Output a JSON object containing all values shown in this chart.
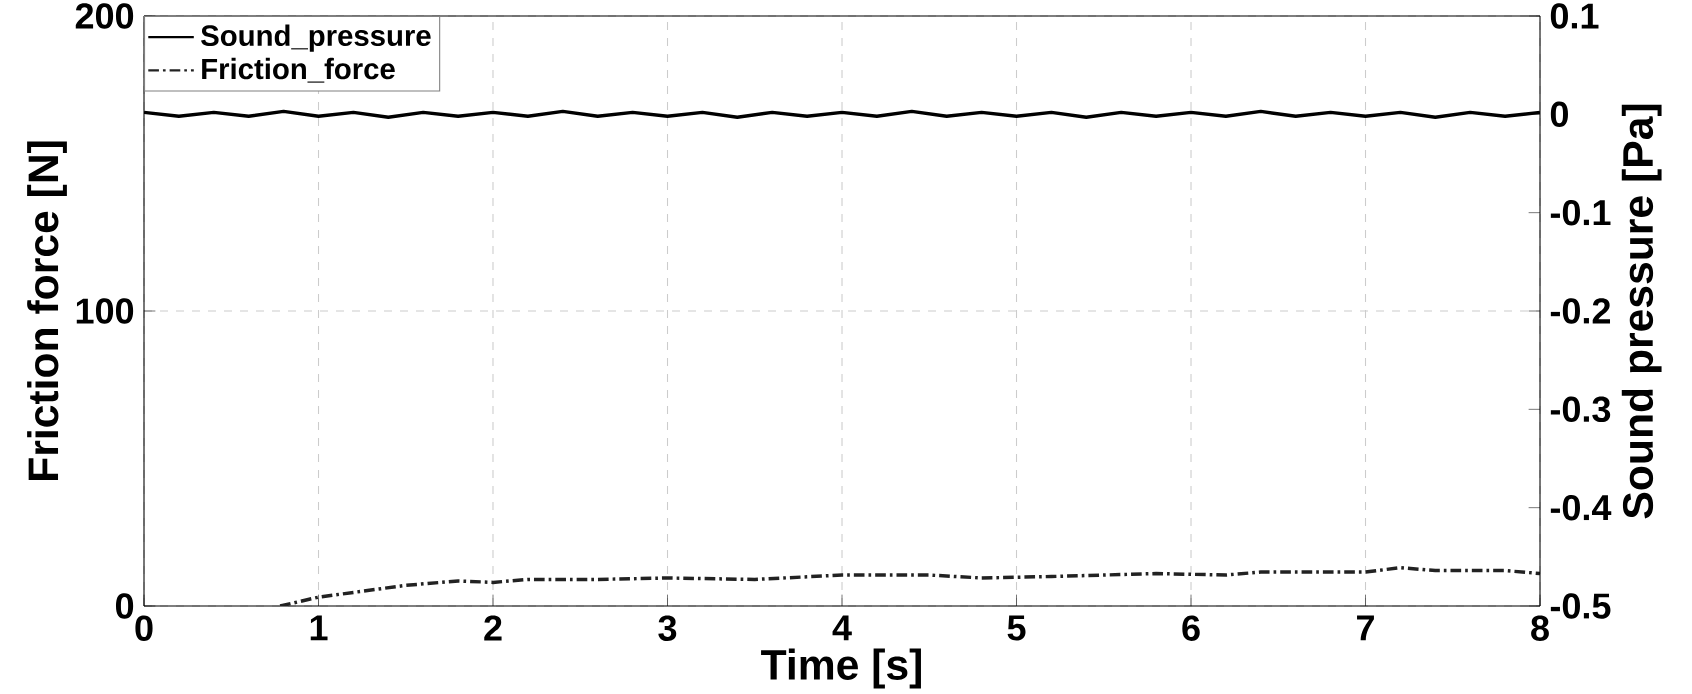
{
  "chart_data": {
    "type": "line",
    "xlabel": "Time [s]",
    "ylabel": "Friction  force [N]",
    "y2label": "Sound  pressure [Pa]",
    "xlim": [
      0,
      8
    ],
    "xticks": [
      0,
      1,
      2,
      3,
      4,
      5,
      6,
      7,
      8
    ],
    "ylim": [
      0,
      200
    ],
    "yticks": [
      0,
      100,
      200
    ],
    "y2lim": [
      -0.5,
      0.1
    ],
    "y2ticks": [
      -0.5,
      -0.4,
      -0.3,
      -0.2,
      -0.1,
      0,
      0.1
    ],
    "grid": true,
    "legend": "top left",
    "marker": "none",
    "series": [
      {
        "name": "Sound_pressure",
        "color": "#000000",
        "axis": "y2",
        "line_style": "solid",
        "x": [
          0,
          0.2,
          0.4,
          0.6,
          0.8,
          1,
          1.2,
          1.4,
          1.6,
          1.8,
          2,
          2.2,
          2.4,
          2.6,
          2.8,
          3,
          3.2,
          3.4,
          3.6,
          3.8,
          4,
          4.2,
          4.4,
          4.6,
          4.8,
          5,
          5.2,
          5.4,
          5.6,
          5.8,
          6,
          6.2,
          6.4,
          6.6,
          6.8,
          7,
          7.2,
          7.4,
          7.6,
          7.8,
          8
        ],
        "values": [
          0.002,
          -0.002,
          0.002,
          -0.002,
          0.003,
          -0.002,
          0.002,
          -0.003,
          0.002,
          -0.002,
          0.002,
          -0.002,
          0.003,
          -0.002,
          0.002,
          -0.002,
          0.002,
          -0.003,
          0.002,
          -0.002,
          0.002,
          -0.002,
          0.003,
          -0.002,
          0.002,
          -0.002,
          0.002,
          -0.003,
          0.002,
          -0.002,
          0.002,
          -0.002,
          0.003,
          -0.002,
          0.002,
          -0.002,
          0.002,
          -0.003,
          0.002,
          -0.002,
          0.002
        ]
      },
      {
        "name": "Friction_force",
        "color": "#222222",
        "axis": "y",
        "line_style": "dashed",
        "x": [
          0.78,
          1,
          1.25,
          1.5,
          1.8,
          2,
          2.2,
          2.6,
          3,
          3.5,
          4,
          4.5,
          4.8,
          5.2,
          5.8,
          6.2,
          6.4,
          7,
          7.2,
          7.4,
          7.8,
          8
        ],
        "values": [
          0,
          3,
          5,
          7,
          8.5,
          8,
          9,
          9,
          9.5,
          9,
          10.5,
          10.5,
          9.5,
          10,
          11,
          10.5,
          11.5,
          11.5,
          13,
          12,
          12,
          11
        ]
      }
    ]
  }
}
